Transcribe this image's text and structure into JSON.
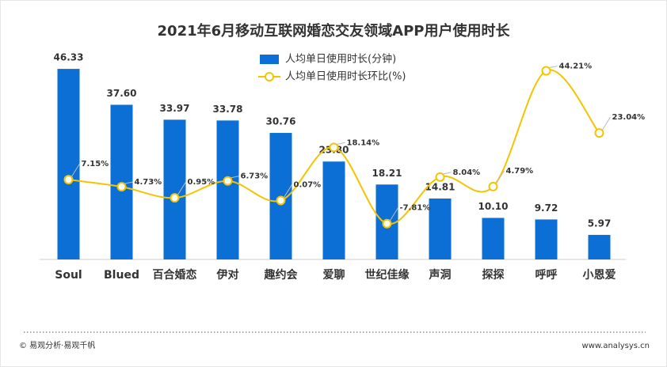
{
  "chart_data": {
    "type": "bar-line",
    "title": "2021年6月移动互联网婚恋交友领域APP用户使用时长",
    "categories": [
      "Soul",
      "Blued",
      "百合婚恋",
      "伊对",
      "趣约会",
      "爱聊",
      "世纪佳缘",
      "声洞",
      "探探",
      "呼呼",
      "小恩爱"
    ],
    "series": [
      {
        "name": "人均单日使用时长(分钟)",
        "type": "bar",
        "color": "#0b6fd6",
        "values": [
          46.33,
          37.6,
          33.97,
          33.78,
          30.76,
          23.8,
          18.21,
          14.81,
          10.1,
          9.72,
          5.97
        ],
        "value_labels": [
          "46.33",
          "37.60",
          "33.97",
          "33.78",
          "30.76",
          "23.80",
          "18.21",
          "14.81",
          "10.10",
          "9.72",
          "5.97"
        ]
      },
      {
        "name": "人均单日使用时长环比(%)",
        "type": "line",
        "axis": "y2",
        "color": "#f5c400",
        "values": [
          7.15,
          4.73,
          0.95,
          6.73,
          0.07,
          18.14,
          -7.81,
          8.04,
          4.79,
          44.21,
          23.04
        ],
        "value_labels": [
          "7.15%",
          "4.73%",
          "0.95%",
          "6.73%",
          "0.07%",
          "18.14%",
          "-7.81%",
          "8.04%",
          "4.79%",
          "44.21%",
          "23.04%"
        ]
      }
    ],
    "ylim": [
      0,
      50
    ],
    "y2lim": [
      -20,
      50
    ],
    "footer_left": "© 易观分析·易观千帆",
    "footer_right": "www.analysys.cn"
  }
}
